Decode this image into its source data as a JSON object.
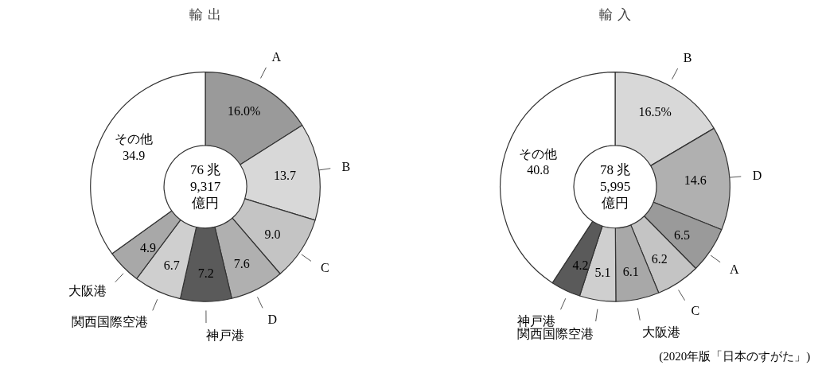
{
  "chart_data": [
    {
      "type": "donut",
      "title": "輸 出",
      "categories": [
        "A",
        "B",
        "C",
        "D",
        "神戸港",
        "関西国際空港",
        "大阪港",
        "その他"
      ],
      "values": [
        16.0,
        13.7,
        9.0,
        7.6,
        7.2,
        6.7,
        4.9,
        34.9
      ],
      "value_labels": [
        "16.0%",
        "13.7",
        "9.0",
        "7.6",
        "7.2",
        "6.7",
        "4.9",
        "34.9"
      ],
      "colors": [
        "#9a9a9a",
        "#d8d8d8",
        "#c4c4c4",
        "#b0b0b0",
        "#5a5a5a",
        "#cfcfcf",
        "#a8a8a8",
        "#ffffff"
      ],
      "legend": false,
      "annotations": [
        "76 兆\n9,317\n億円"
      ]
    },
    {
      "type": "donut",
      "title": "輸 入",
      "categories": [
        "B",
        "D",
        "A",
        "C",
        "大阪港",
        "関西国際空港",
        "神戸港",
        "その他"
      ],
      "values": [
        16.5,
        14.6,
        6.5,
        6.2,
        6.1,
        5.1,
        4.2,
        40.8
      ],
      "value_labels": [
        "16.5%",
        "14.6",
        "6.5",
        "6.2",
        "6.1",
        "5.1",
        "4.2",
        "40.8"
      ],
      "colors": [
        "#d8d8d8",
        "#b0b0b0",
        "#9a9a9a",
        "#c4c4c4",
        "#a8a8a8",
        "#cfcfcf",
        "#5a5a5a",
        "#ffffff"
      ],
      "legend": false,
      "annotations": [
        "78 兆\n5,995\n億円",
        "(2020年版「日本のすがた」)"
      ]
    }
  ]
}
